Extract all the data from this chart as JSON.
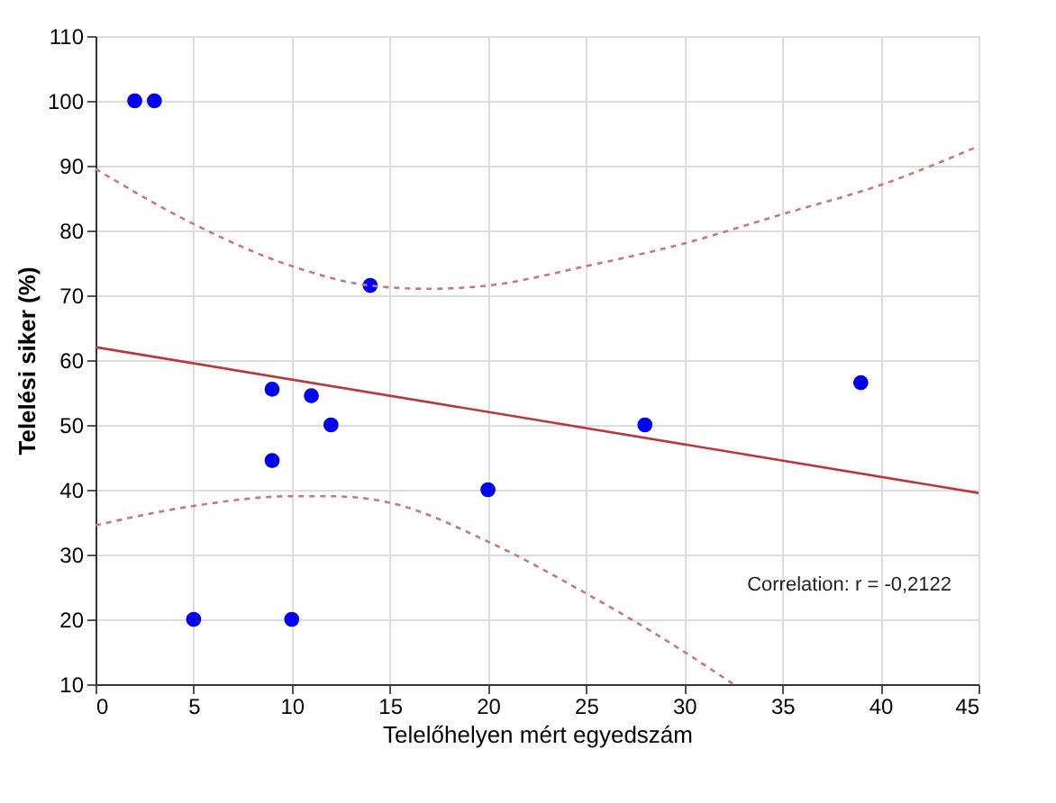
{
  "chart_data": {
    "type": "scatter",
    "xlabel": "Telelőhelyen mért egyedszám",
    "ylabel": "Telelési siker (%)",
    "xlim": [
      0,
      45
    ],
    "xticks": [
      0,
      5,
      10,
      15,
      20,
      25,
      30,
      35,
      40,
      45
    ],
    "ylim": [
      10,
      110
    ],
    "yticks": [
      10,
      20,
      30,
      40,
      50,
      60,
      70,
      80,
      90,
      100,
      110
    ],
    "grid": true,
    "marker": "circle",
    "annotations": [
      "Correlation: r = -0,2122"
    ],
    "series": [
      {
        "color": "#0000ee",
        "x": [
          2,
          3,
          14,
          9,
          11,
          12,
          9,
          20,
          28,
          39,
          5,
          10
        ],
        "values": [
          100,
          100,
          71.5,
          55.5,
          54.5,
          50,
          44.5,
          40,
          50,
          56.5,
          20,
          20
        ]
      },
      {
        "type": "line",
        "color": "#b83a3a",
        "line_style": "solid",
        "marker": "none",
        "x": [
          0,
          45
        ],
        "values": [
          62,
          39.5
        ]
      },
      {
        "type": "line",
        "color": "#c87878",
        "line_style": "dashed",
        "marker": "none",
        "x": [
          0,
          5,
          10,
          14,
          17,
          20,
          25,
          30,
          35,
          40,
          45
        ],
        "values": [
          89.5,
          81,
          74.5,
          71.5,
          71,
          71.5,
          74.5,
          78,
          82.5,
          87,
          93
        ]
      },
      {
        "type": "line",
        "color": "#c87878",
        "line_style": "dashed",
        "marker": "none",
        "x": [
          0,
          5,
          10,
          12,
          15,
          20,
          25,
          30,
          32.5
        ],
        "values": [
          34.5,
          37.5,
          39,
          39,
          38,
          32,
          24,
          15,
          10
        ]
      }
    ]
  }
}
